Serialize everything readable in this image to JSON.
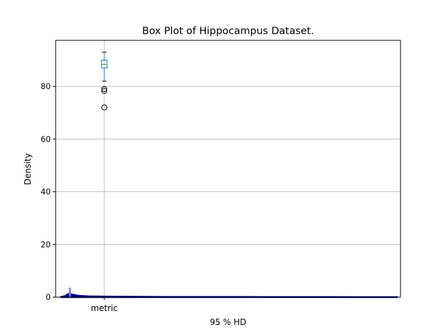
{
  "chart_data": {
    "type": "box",
    "title": "Box Plot of Hippocampus Dataset.",
    "xlabel": "95 % HD",
    "ylabel": "Density",
    "categories": [
      "metric"
    ],
    "ylim": [
      0,
      97.5
    ],
    "yticks": [
      0,
      20,
      40,
      60,
      80
    ],
    "grid": true,
    "box": {
      "q1": 87.0,
      "median": 88.4,
      "q3": 90.0,
      "whisker_low": 82.0,
      "whisker_high": 93.0,
      "outliers": [
        79.0,
        78.3,
        72.0
      ]
    },
    "histogram": {
      "bins": [
        {
          "x0": 0.0,
          "x1": 2.5,
          "height": 3.5
        }
      ]
    },
    "density": {
      "x": [
        -12,
        -6,
        -3,
        0,
        3,
        8,
        15,
        30,
        60,
        100,
        150,
        200,
        250,
        300,
        350,
        400,
        450,
        490
      ],
      "y": [
        0.05,
        0.4,
        0.9,
        1.3,
        1.1,
        0.8,
        0.5,
        0.3,
        0.2,
        0.12,
        0.08,
        0.06,
        0.05,
        0.04,
        0.03,
        0.02,
        0.01,
        0.0
      ]
    },
    "colors": {
      "box": "#1f77b4",
      "median": "#2ca02c",
      "histogram": "#8c8cd0",
      "density": "#00008b",
      "grid": "#b0b0b0"
    }
  }
}
